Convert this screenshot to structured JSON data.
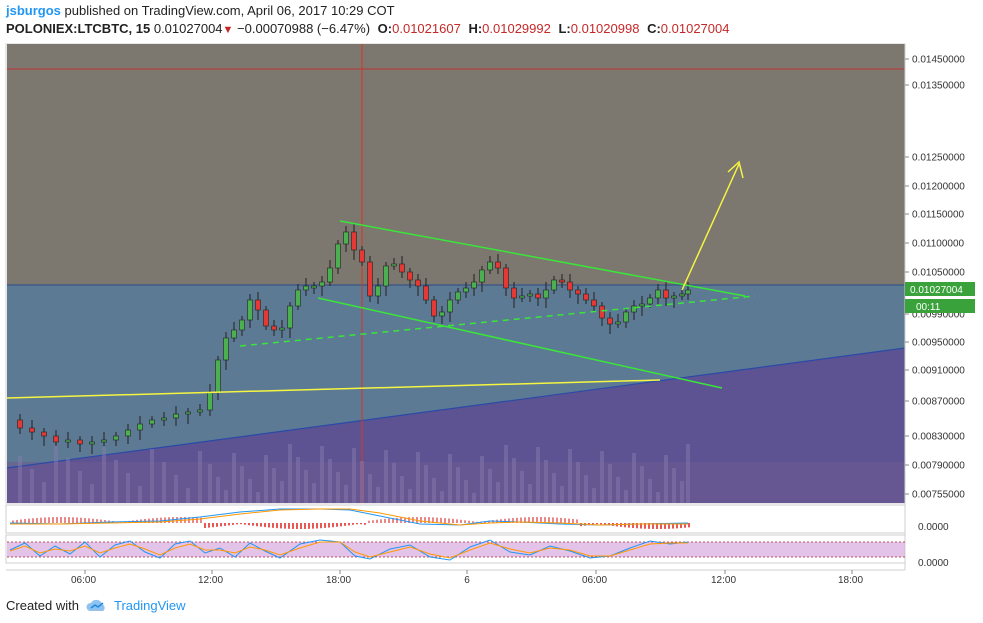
{
  "header": {
    "user": "jsburgos",
    "published_text": "published on TradingView.com, April 06, 2017 10:29 COT",
    "symbol": "POLONIEX:LTCBTC, 15",
    "last": "0.01027004",
    "change": "−0.00070988 (−6.47%)",
    "o_label": "O:",
    "o_value": "0.01021607",
    "h_label": "H:",
    "h_value": "0.01029992",
    "l_label": "L:",
    "l_value": "0.01020998",
    "c_label": "C:",
    "c_value": "0.01027004"
  },
  "price_axis": {
    "ticks": [
      "0.01450000",
      "0.01350000",
      "0.01250000",
      "0.01200000",
      "0.01150000",
      "0.01100000",
      "0.01050000",
      "0.00990000",
      "0.00950000",
      "0.00910000",
      "0.00870000",
      "0.00830000",
      "0.00790000",
      "0.00755000"
    ],
    "current_price_tag": "0.01027004",
    "countdown_tag": "00:11"
  },
  "time_axis": {
    "ticks": [
      "06:00",
      "12:00",
      "18:00",
      "6",
      "06:00",
      "12:00",
      "18:00"
    ]
  },
  "macd_axis": {
    "label": "0.0000"
  },
  "stoch_axis": {
    "label": "0.0000"
  },
  "footer": {
    "created_with": "Created with",
    "brand": "TradingView"
  },
  "colors": {
    "up": "#4caf50",
    "down": "#e53935",
    "trendline": "#39e639",
    "yellow": "#f5f542",
    "current_price": "#3aa23a"
  }
}
